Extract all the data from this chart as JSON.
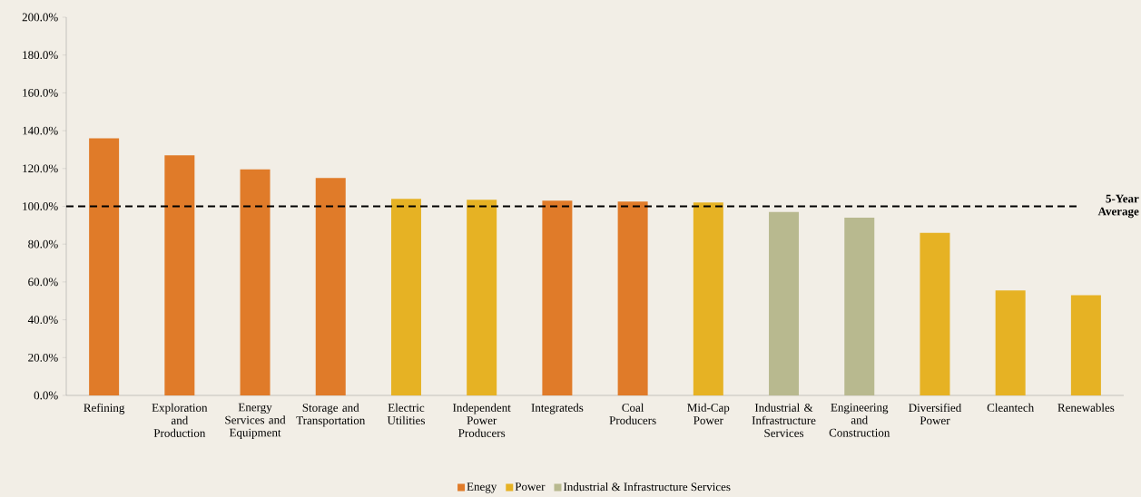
{
  "chart_data": {
    "type": "bar",
    "stacked": true,
    "categories": [
      "Refining",
      "Exploration and Production",
      "Energy Services and Equipment",
      "Storage and Transportation",
      "Electric Utilities",
      "Independent Power Producers",
      "Integrateds",
      "Coal Producers",
      "Mid-Cap Power",
      "Industrial & Infrastructure Services",
      "Engineering and Construction",
      "Diversified Power",
      "Cleantech",
      "Renewables"
    ],
    "series": [
      {
        "name": "Enegy",
        "color": "#e07b29",
        "values": [
          136,
          127,
          119.5,
          115,
          null,
          null,
          103,
          102.5,
          null,
          null,
          null,
          null,
          null,
          null
        ]
      },
      {
        "name": "Power",
        "color": "#e6b224",
        "values": [
          null,
          null,
          null,
          null,
          104,
          103.5,
          null,
          null,
          102,
          null,
          null,
          86,
          55.5,
          53
        ]
      },
      {
        "name": "Industrial & Infrastructure Services",
        "color": "#b8b98f",
        "values": [
          null,
          null,
          null,
          null,
          null,
          null,
          null,
          null,
          null,
          97,
          94,
          null,
          null,
          null
        ]
      }
    ],
    "ylim": [
      0,
      200
    ],
    "yticks": [
      {
        "value": 0,
        "label": "0.0%"
      },
      {
        "value": 20,
        "label": "20.0%"
      },
      {
        "value": 40,
        "label": "40.0%"
      },
      {
        "value": 60,
        "label": "60.0%"
      },
      {
        "value": 80,
        "label": "80.0%"
      },
      {
        "value": 100,
        "label": "100.0%"
      },
      {
        "value": 120,
        "label": "120.0%"
      },
      {
        "value": 140,
        "label": "140.0%"
      },
      {
        "value": 160,
        "label": "160.0%"
      },
      {
        "value": 180,
        "label": "180.0%"
      },
      {
        "value": 200,
        "label": "200.0%"
      }
    ],
    "ref_lines": [
      {
        "axis": "y",
        "value": 100,
        "label": "5-Year Average",
        "color": "#000000",
        "line_style": "dashed"
      }
    ],
    "legend": "bottom"
  }
}
